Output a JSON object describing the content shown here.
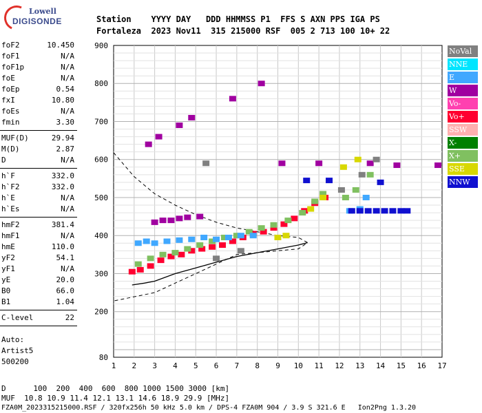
{
  "logo": {
    "line1": "Lowell",
    "line2": "DIGISONDE"
  },
  "header": {
    "line1": "Station    YYYY DAY   DDD HHMMSS P1  FFS S AXN PPS IGA PS",
    "line2": "Fortaleza  2023 Nov11  315 215000 RSF  005 2 713 100 10+ 22"
  },
  "params_group1": [
    {
      "name": "foF2",
      "value": "10.450"
    },
    {
      "name": "foF1",
      "value": "N/A"
    },
    {
      "name": "foF1p",
      "value": "N/A"
    },
    {
      "name": "foE",
      "value": "N/A"
    },
    {
      "name": "foEp",
      "value": "0.54"
    },
    {
      "name": "fxI",
      "value": "10.80"
    },
    {
      "name": "foEs",
      "value": "N/A"
    },
    {
      "name": "fmin",
      "value": "3.30"
    }
  ],
  "params_group2": [
    {
      "name": "MUF(D)",
      "value": "29.94"
    },
    {
      "name": "M(D)",
      "value": "2.87"
    },
    {
      "name": "D",
      "value": "N/A"
    }
  ],
  "params_group3": [
    {
      "name": "h`F",
      "value": "332.0"
    },
    {
      "name": "h`F2",
      "value": "332.0"
    },
    {
      "name": "h`E",
      "value": "N/A"
    },
    {
      "name": "h`Es",
      "value": "N/A"
    }
  ],
  "params_group4": [
    {
      "name": "hmF2",
      "value": "381.4"
    },
    {
      "name": "hmF1",
      "value": "N/A"
    },
    {
      "name": "hmE",
      "value": "110.0"
    },
    {
      "name": "yF2",
      "value": "54.1"
    },
    {
      "name": "yF1",
      "value": "N/A"
    },
    {
      "name": "yE",
      "value": "20.0"
    },
    {
      "name": "B0",
      "value": "66.0"
    },
    {
      "name": "B1",
      "value": "1.04"
    }
  ],
  "params_group5": [
    {
      "name": "C-level",
      "value": "22"
    }
  ],
  "auto": {
    "line1": "Auto:",
    "line2": "Artist5",
    "line3": "500200"
  },
  "legend": [
    {
      "label": "NoVal",
      "color": "#808080"
    },
    {
      "label": "NNE",
      "color": "#00e5ff"
    },
    {
      "label": "E",
      "color": "#40a8ff"
    },
    {
      "label": "W",
      "color": "#a000a0"
    },
    {
      "label": "Vo-",
      "color": "#ff40b0"
    },
    {
      "label": "Vo+",
      "color": "#ff0030"
    },
    {
      "label": "SSW",
      "color": "#ffb0b0"
    },
    {
      "label": "X-",
      "color": "#008000"
    },
    {
      "label": "X+",
      "color": "#80c060"
    },
    {
      "label": "SSE",
      "color": "#d8d800"
    },
    {
      "label": "NNW",
      "color": "#1010d0"
    }
  ],
  "bottom": {
    "line1": "D      100  200  400  600  800 1000 1500 3000 [km]",
    "line2": "MUF  10.8 10.9 11.4 12.1 13.1 14.6 18.9 29.9 [MHz]",
    "line3": "FZA0M_2023315215000.RSF / 320fx256h 50 kHz 5.0 km / DPS-4 FZA0M 904 / 3.9 S 321.6 E   Ion2Png 1.3.20"
  },
  "chart_data": {
    "type": "scatter",
    "xlim": [
      1,
      17
    ],
    "ylim": [
      80,
      900
    ],
    "x_ticks": [
      1,
      2,
      3,
      4,
      5,
      6,
      7,
      8,
      9,
      10,
      11,
      12,
      13,
      14,
      15,
      16,
      17
    ],
    "y_ticks": [
      80,
      200,
      300,
      400,
      500,
      600,
      700,
      800,
      900
    ],
    "grid": true,
    "legend_placement": "right",
    "series": [
      {
        "name": "Vo+",
        "points": [
          [
            1.9,
            305
          ],
          [
            2.3,
            310
          ],
          [
            2.8,
            320
          ],
          [
            3.3,
            335
          ],
          [
            3.8,
            345
          ],
          [
            4.3,
            350
          ],
          [
            4.8,
            360
          ],
          [
            5.3,
            365
          ],
          [
            5.8,
            370
          ],
          [
            6.3,
            375
          ],
          [
            6.8,
            385
          ],
          [
            7.3,
            395
          ],
          [
            7.8,
            405
          ],
          [
            8.3,
            410
          ],
          [
            8.8,
            420
          ],
          [
            9.3,
            430
          ],
          [
            9.8,
            445
          ],
          [
            10.3,
            465
          ],
          [
            10.8,
            485
          ],
          [
            11.3,
            500
          ]
        ]
      },
      {
        "name": "X+",
        "points": [
          [
            2.2,
            325
          ],
          [
            2.8,
            340
          ],
          [
            3.4,
            350
          ],
          [
            4.0,
            355
          ],
          [
            4.6,
            365
          ],
          [
            5.2,
            375
          ],
          [
            5.8,
            385
          ],
          [
            6.4,
            395
          ],
          [
            7.0,
            400
          ],
          [
            7.6,
            410
          ],
          [
            8.2,
            420
          ],
          [
            8.8,
            428
          ],
          [
            9.5,
            440
          ],
          [
            10.2,
            460
          ],
          [
            10.8,
            490
          ],
          [
            11.2,
            510
          ],
          [
            12.3,
            500
          ],
          [
            12.8,
            520
          ],
          [
            13.5,
            560
          ]
        ]
      },
      {
        "name": "E",
        "points": [
          [
            2.2,
            380
          ],
          [
            2.6,
            385
          ],
          [
            3.0,
            380
          ],
          [
            3.6,
            385
          ],
          [
            4.2,
            388
          ],
          [
            4.8,
            390
          ],
          [
            5.4,
            395
          ],
          [
            6.0,
            390
          ],
          [
            6.6,
            395
          ],
          [
            7.2,
            400
          ],
          [
            7.8,
            400
          ],
          [
            12.5,
            465
          ],
          [
            13.0,
            470
          ],
          [
            13.3,
            500
          ]
        ]
      },
      {
        "name": "W",
        "points": [
          [
            3.0,
            435
          ],
          [
            3.4,
            440
          ],
          [
            3.8,
            440
          ],
          [
            4.2,
            445
          ],
          [
            4.6,
            448
          ],
          [
            5.2,
            450
          ],
          [
            2.7,
            640
          ],
          [
            3.2,
            660
          ],
          [
            4.2,
            690
          ],
          [
            4.8,
            710
          ],
          [
            6.8,
            760
          ],
          [
            8.2,
            800
          ],
          [
            9.2,
            590
          ],
          [
            11.0,
            590
          ],
          [
            13.5,
            590
          ],
          [
            14.8,
            585
          ],
          [
            16.8,
            585
          ]
        ]
      },
      {
        "name": "NNW",
        "points": [
          [
            12.6,
            465
          ],
          [
            13.0,
            465
          ],
          [
            13.4,
            465
          ],
          [
            13.8,
            465
          ],
          [
            14.2,
            465
          ],
          [
            14.6,
            465
          ],
          [
            15.0,
            465
          ],
          [
            15.3,
            465
          ],
          [
            10.4,
            545
          ],
          [
            11.5,
            545
          ],
          [
            14.0,
            540
          ]
        ]
      },
      {
        "name": "SSE",
        "points": [
          [
            9.0,
            395
          ],
          [
            9.4,
            400
          ],
          [
            10.6,
            470
          ],
          [
            11.2,
            500
          ],
          [
            12.2,
            580
          ],
          [
            12.9,
            600
          ]
        ]
      },
      {
        "name": "NoVal",
        "points": [
          [
            6.0,
            340
          ],
          [
            7.2,
            360
          ],
          [
            12.1,
            520
          ],
          [
            13.1,
            560
          ],
          [
            13.8,
            600
          ],
          [
            5.5,
            590
          ]
        ]
      }
    ],
    "profile_solid": [
      [
        1.9,
        270
      ],
      [
        2.5,
        275
      ],
      [
        3.0,
        280
      ],
      [
        3.5,
        290
      ],
      [
        4.0,
        300
      ],
      [
        5.0,
        315
      ],
      [
        6.0,
        330
      ],
      [
        7.0,
        345
      ],
      [
        8.0,
        355
      ],
      [
        9.0,
        365
      ],
      [
        10.0,
        375
      ],
      [
        10.45,
        381.4
      ]
    ],
    "profile_dashed": [
      [
        1,
        618
      ],
      [
        2,
        555
      ],
      [
        3,
        510
      ],
      [
        4,
        480
      ],
      [
        5,
        455
      ],
      [
        6,
        435
      ],
      [
        7,
        420
      ],
      [
        8,
        410
      ],
      [
        9,
        400
      ],
      [
        10,
        395
      ],
      [
        10.45,
        381.4
      ],
      [
        10,
        365
      ],
      [
        9,
        360
      ],
      [
        7,
        350
      ],
      [
        5,
        300
      ],
      [
        3,
        250
      ],
      [
        1,
        228
      ]
    ]
  }
}
